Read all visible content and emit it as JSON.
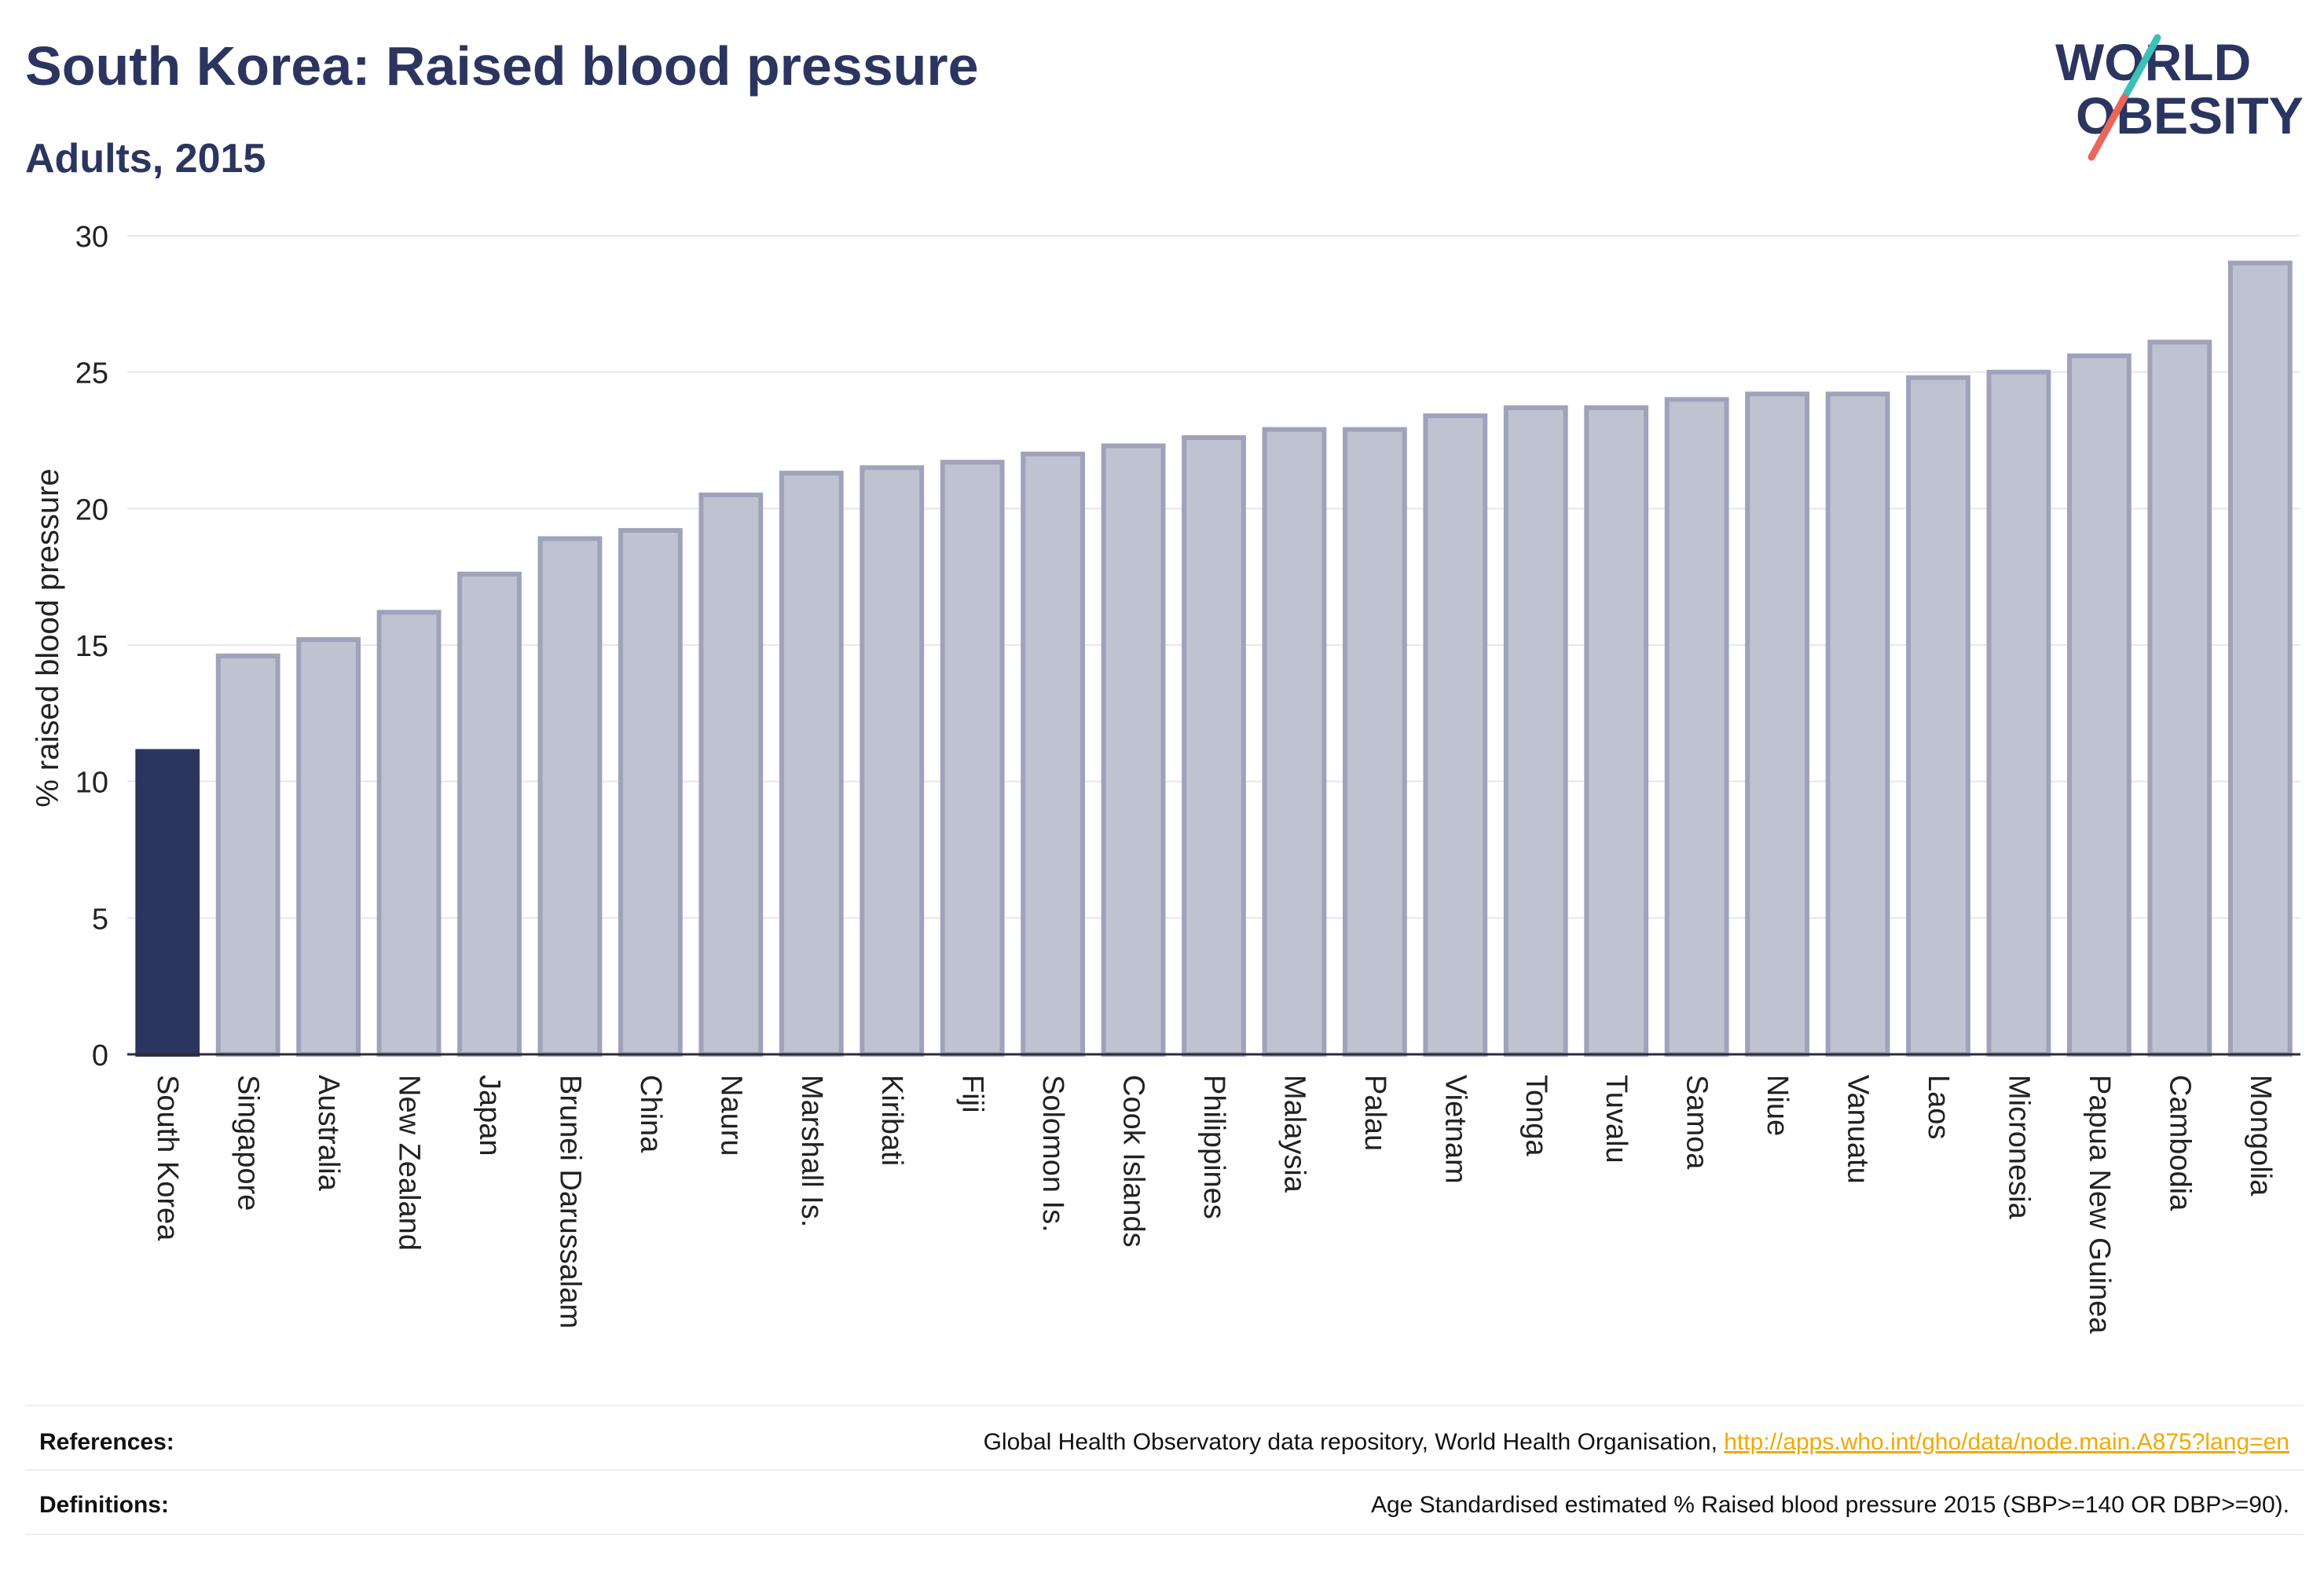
{
  "header": {
    "title": "South Korea: Raised blood pressure",
    "subtitle": "Adults, 2015"
  },
  "logo": {
    "line1": "WORLD",
    "line2": "OBESITY",
    "brand_color": "#2b3560",
    "accent_teal": "#3bbfb8",
    "accent_red": "#e8665a"
  },
  "chart_data": {
    "type": "bar",
    "title": "South Korea: Raised blood pressure",
    "subtitle": "Adults, 2015",
    "xlabel": "",
    "ylabel": "% raised blood pressure",
    "ylim": [
      0,
      30
    ],
    "yticks": [
      "0",
      "5",
      "10",
      "15",
      "20",
      "25",
      "30"
    ],
    "grid": true,
    "highlight": "South Korea",
    "colors": {
      "highlight": "#2b3560",
      "bar_fill": "#bfc2d0",
      "bar_edge": "#9ea3bb",
      "grid": "#e6e8ef",
      "axis": "#2b2b3a"
    },
    "categories": [
      "South Korea",
      "Singapore",
      "Australia",
      "New Zealand",
      "Japan",
      "Brunei Darussalam",
      "China",
      "Nauru",
      "Marshall Is.",
      "Kiribati",
      "Fiji",
      "Solomon Is.",
      "Cook Islands",
      "Philippines",
      "Malaysia",
      "Palau",
      "Vietnam",
      "Tonga",
      "Tuvalu",
      "Samoa",
      "Niue",
      "Vanuatu",
      "Laos",
      "Micronesia",
      "Papua New Guinea",
      "Cambodia",
      "Mongolia"
    ],
    "values": [
      11.1,
      14.6,
      15.2,
      16.2,
      17.6,
      18.9,
      19.2,
      20.5,
      21.3,
      21.5,
      21.7,
      22.0,
      22.3,
      22.6,
      22.9,
      22.9,
      23.4,
      23.7,
      23.7,
      24.0,
      24.2,
      24.2,
      24.8,
      25.0,
      25.6,
      26.1,
      29.0
    ]
  },
  "footer": {
    "references_label": "References:",
    "references_text": "Global Health Observatory data repository, World Health Organisation, ",
    "references_link": "http://apps.who.int/gho/data/node.main.A875?lang=en",
    "definitions_label": "Definitions:",
    "definitions_text": "Age Standardised estimated % Raised blood pressure 2015 (SBP>=140 OR DBP>=90)."
  }
}
